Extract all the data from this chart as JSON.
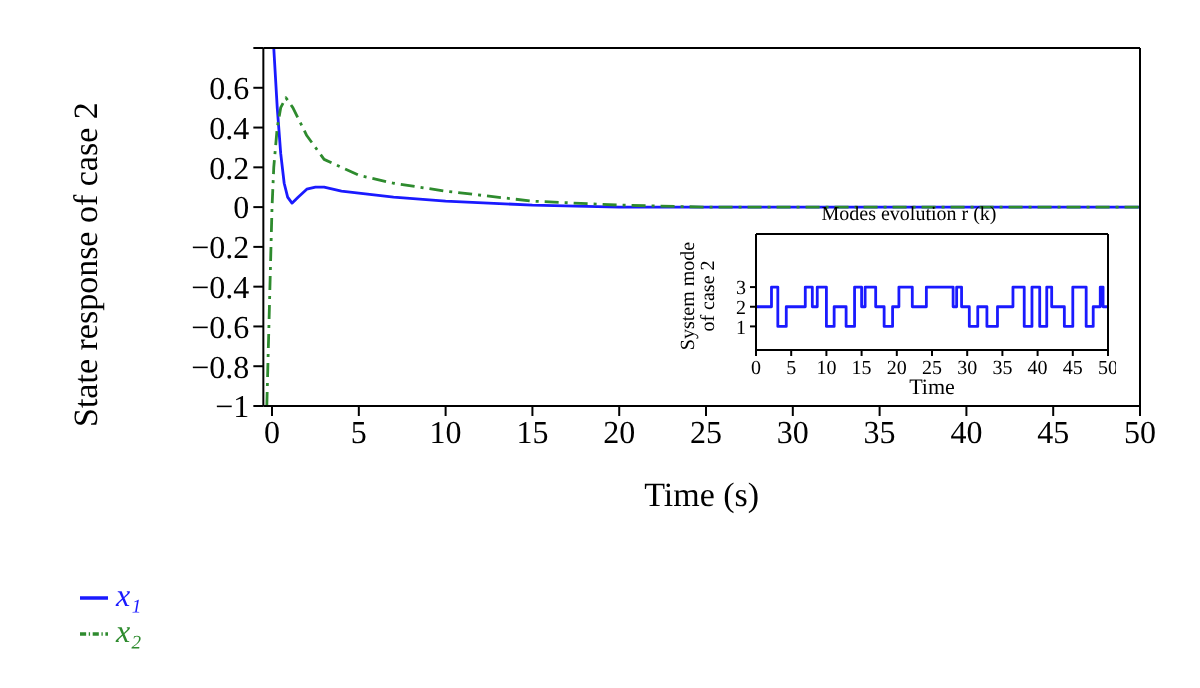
{
  "chart_data": [
    {
      "type": "line",
      "ylabel": "State response of case 2",
      "xlabel": "Time (s)",
      "xlim": [
        -0.5,
        50
      ],
      "xticks": [
        0,
        5,
        10,
        15,
        20,
        25,
        30,
        35,
        40,
        45,
        50
      ],
      "ylim": [
        -1,
        0.8
      ],
      "yticks": [
        -1,
        -0.8,
        -0.6,
        -0.4,
        -0.2,
        0,
        0.2,
        0.4,
        0.6,
        {
          "value": 0.8,
          "label": null
        }
      ],
      "grid": false,
      "legend": "bottom left",
      "marker": "none",
      "series": [
        {
          "name": "x₁",
          "color": "#1a1aff",
          "line_style": "solid",
          "x": [
            0.1,
            0.3,
            0.5,
            0.7,
            0.9,
            1.15,
            1.5,
            2,
            2.5,
            3,
            4,
            5,
            7,
            10,
            15,
            20,
            30,
            50
          ],
          "values": [
            0.8,
            0.5,
            0.27,
            0.12,
            0.05,
            0.02,
            0.05,
            0.09,
            0.1,
            0.1,
            0.08,
            0.07,
            0.05,
            0.03,
            0.01,
            0,
            0,
            0
          ]
        },
        {
          "name": "x₂",
          "color": "#2e8b2e",
          "line_style": "dashed",
          "x": [
            -0.3,
            -0.15,
            0,
            0.1,
            0.3,
            0.5,
            0.8,
            1.2,
            2,
            3,
            5,
            7,
            10,
            15,
            20,
            25,
            50
          ],
          "values": [
            -1,
            -0.5,
            0,
            0.2,
            0.4,
            0.5,
            0.55,
            0.5,
            0.36,
            0.24,
            0.16,
            0.12,
            0.08,
            0.03,
            0.01,
            0,
            0
          ]
        }
      ]
    },
    {
      "type": "step",
      "title": "Modes evolution r (k)",
      "ylabel": "System mode of case 2",
      "xlabel": "Time",
      "xlim": [
        0,
        50
      ],
      "xticks": [
        0,
        5,
        10,
        15,
        20,
        25,
        30,
        35,
        40,
        45,
        50
      ],
      "ylim": [
        -0.2,
        5.7
      ],
      "yticks": [
        1,
        2,
        3
      ],
      "grid": false,
      "series": [
        {
          "color": "#1a1aff",
          "x": [
            0,
            2.2,
            3.1,
            4.3,
            7,
            8,
            8.7,
            10,
            11.1,
            12.8,
            14,
            15,
            15.5,
            17,
            18.2,
            19.4,
            20.3,
            22.2,
            24.2,
            28,
            28.5,
            29.2,
            30.3,
            31.5,
            32.8,
            34.3,
            36.5,
            38.1,
            39.2,
            40.3,
            41.3,
            42,
            43.8,
            45,
            46.9,
            47.9,
            48.9,
            49.3,
            50
          ],
          "values": [
            2,
            3,
            1,
            2,
            3,
            2,
            3,
            1,
            2,
            1,
            3,
            2,
            3,
            2,
            1,
            2,
            3,
            2,
            3,
            2,
            3,
            2,
            1,
            2,
            1,
            2,
            3,
            1,
            3,
            1,
            3,
            2,
            1,
            3,
            1,
            2,
            3,
            2,
            2
          ]
        }
      ]
    }
  ]
}
